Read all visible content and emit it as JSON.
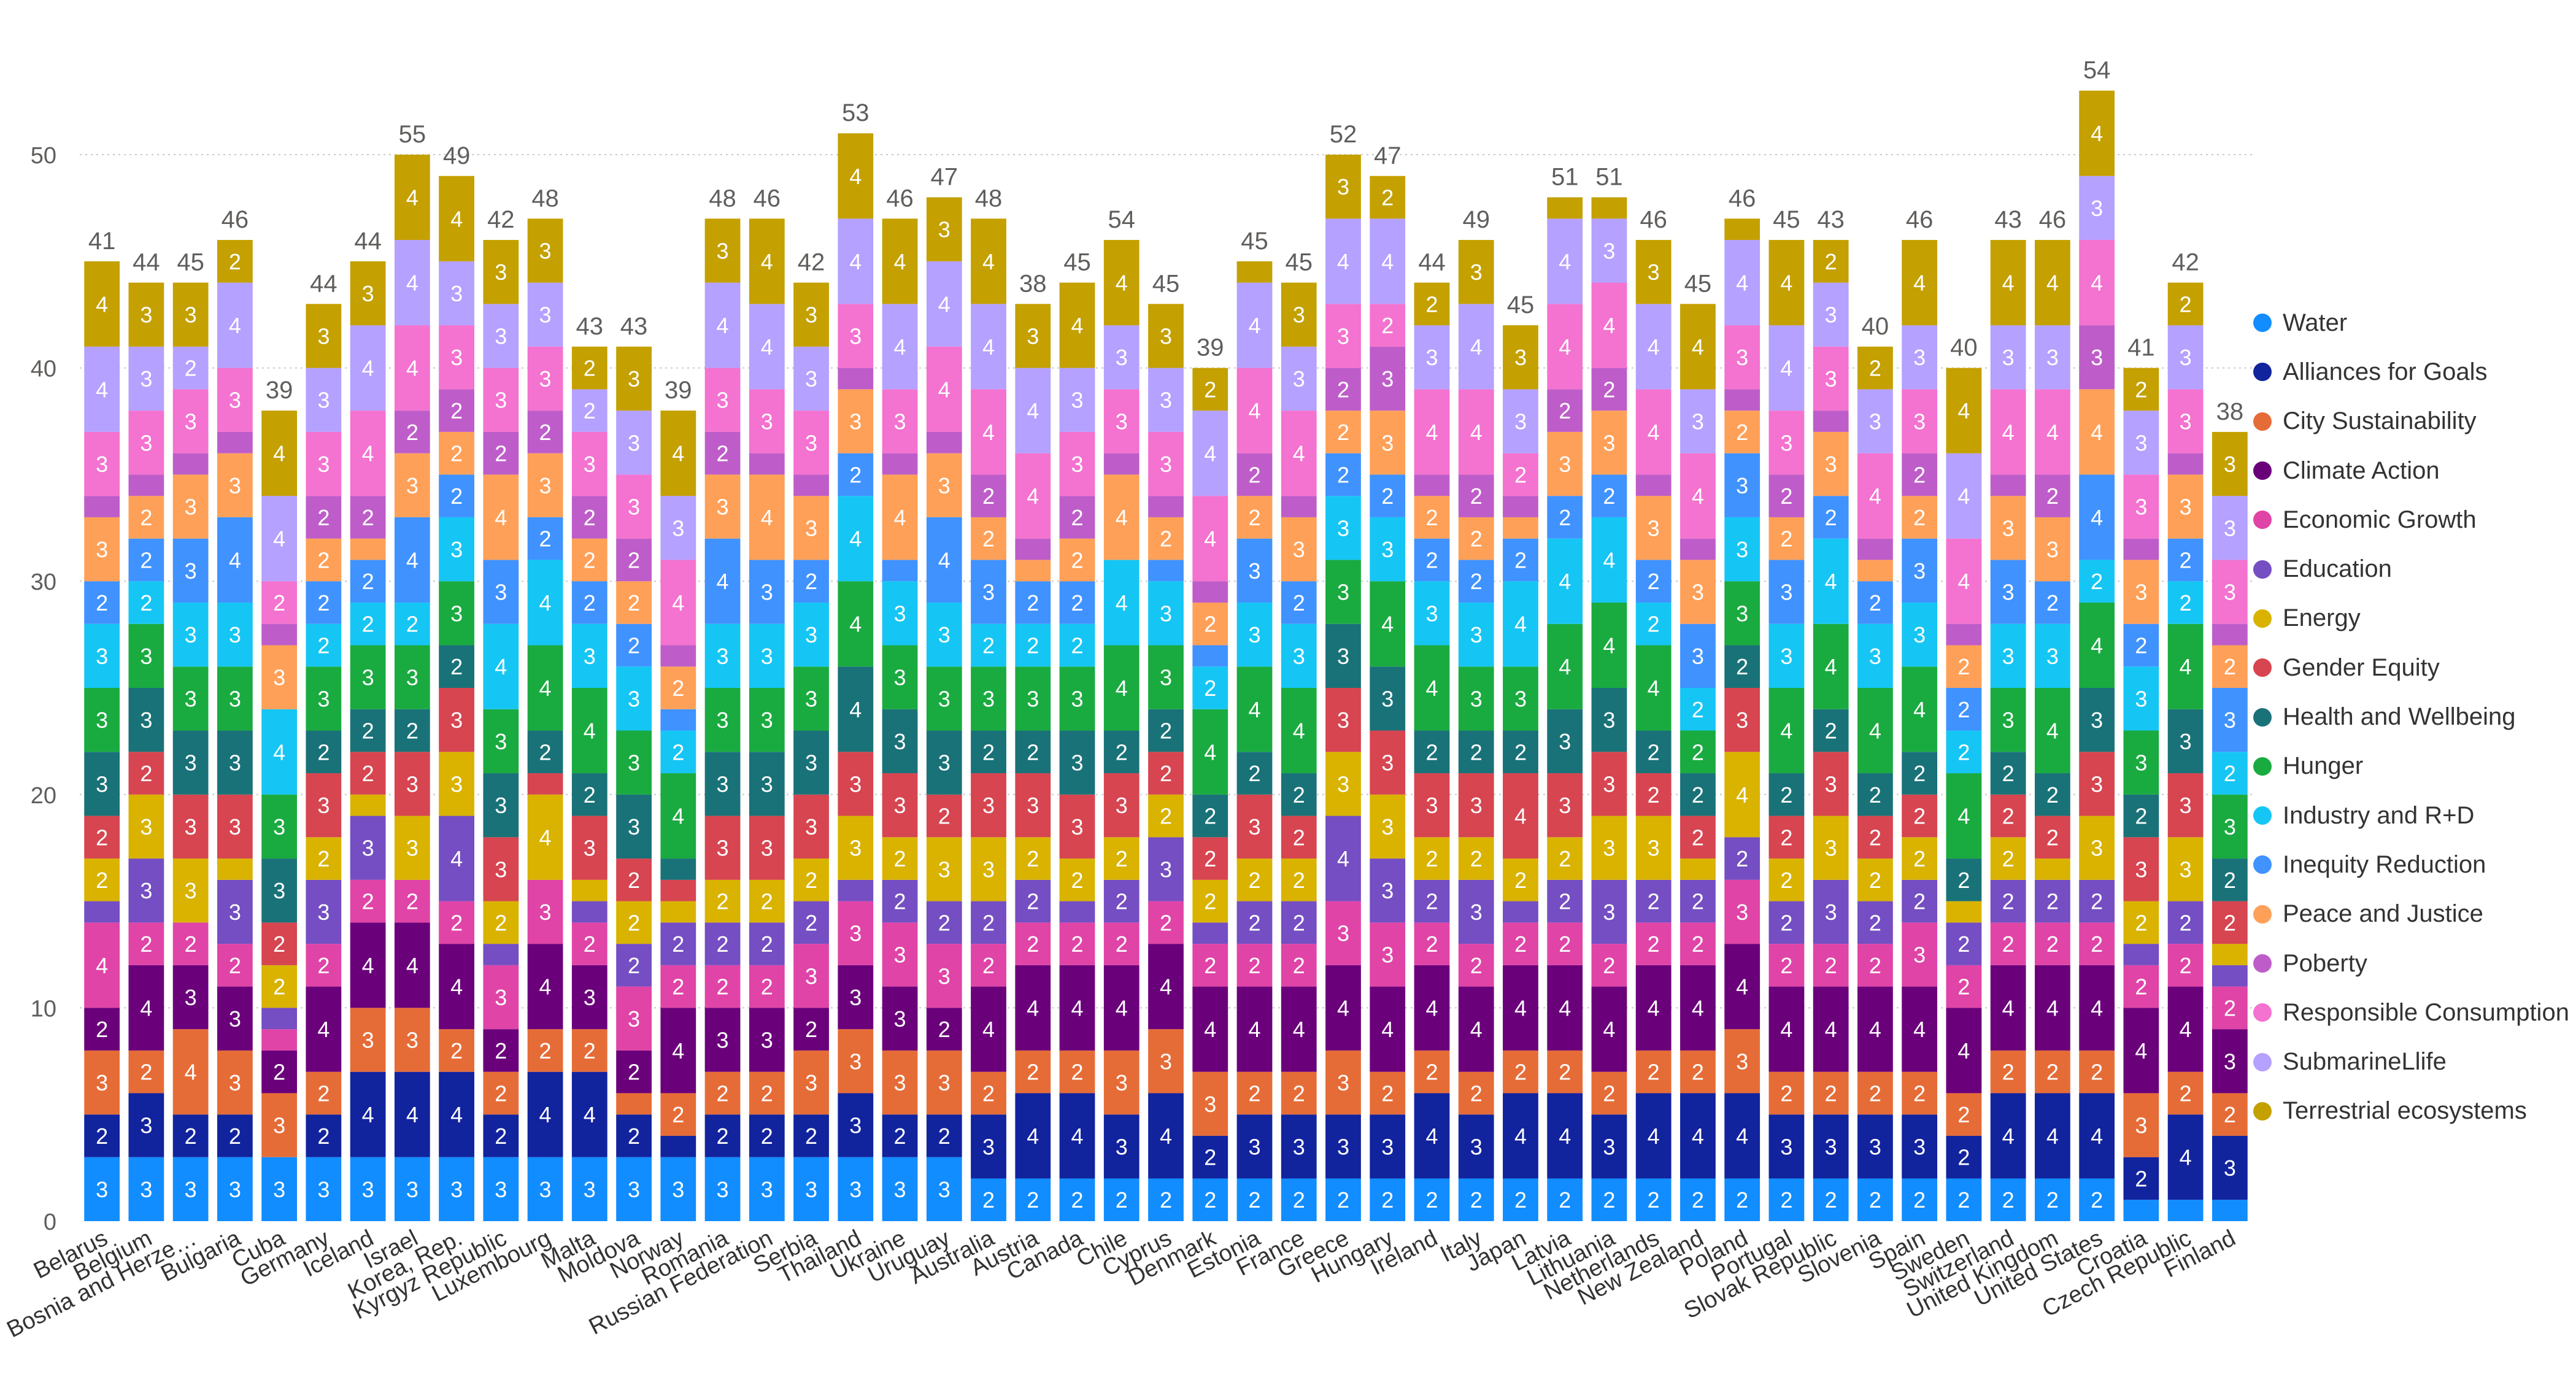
{
  "chart_data": {
    "type": "bar",
    "stacked": true,
    "grid": true,
    "legend_position": "right",
    "ylim": [
      0,
      55
    ],
    "yticks": [
      0,
      10,
      20,
      30,
      40,
      50
    ],
    "categories": [
      "Belarus",
      "Belgium",
      "Bosnia and Herze…",
      "Bulgaria",
      "Cuba",
      "Germany",
      "Iceland",
      "Israel",
      "Korea, Rep.",
      "Kyrgyz Republic",
      "Luxembourg",
      "Malta",
      "Moldova",
      "Norway",
      "Romania",
      "Russian Federation",
      "Serbia",
      "Thailand",
      "Ukraine",
      "Uruguay",
      "Australia",
      "Austria",
      "Canada",
      "Chile",
      "Cyprus",
      "Denmark",
      "Estonia",
      "France",
      "Greece",
      "Hungary",
      "Ireland",
      "Italy",
      "Japan",
      "Latvia",
      "Lithuania",
      "Netherlands",
      "New Zealand",
      "Poland",
      "Portugal",
      "Slovak Republic",
      "Slovenia",
      "Spain",
      "Sweden",
      "Switzerland",
      "United Kingdom",
      "United States",
      "Croatia",
      "Czech Republic",
      "Finland"
    ],
    "totals": [
      41,
      44,
      45,
      46,
      39,
      44,
      44,
      55,
      49,
      42,
      48,
      43,
      43,
      39,
      48,
      46,
      42,
      53,
      46,
      47,
      48,
      38,
      45,
      54,
      45,
      39,
      45,
      45,
      52,
      47,
      44,
      49,
      45,
      51,
      51,
      46,
      45,
      46,
      45,
      43,
      40,
      46,
      40,
      43,
      46,
      54,
      41,
      42,
      38
    ],
    "series": [
      {
        "name": "Water",
        "color": "#118DFF",
        "values": [
          3,
          3,
          3,
          3,
          3,
          3,
          3,
          3,
          3,
          3,
          3,
          3,
          3,
          3,
          3,
          3,
          3,
          3,
          3,
          3,
          2,
          2,
          2,
          2,
          2,
          2,
          2,
          2,
          2,
          2,
          2,
          2,
          2,
          2,
          2,
          2,
          2,
          2,
          2,
          2,
          2,
          2,
          2,
          2,
          2,
          2,
          1,
          1,
          1
        ]
      },
      {
        "name": "Alliances for Goals",
        "color": "#12239E",
        "values": [
          2,
          3,
          2,
          2,
          0,
          2,
          4,
          4,
          4,
          2,
          4,
          4,
          2,
          1,
          2,
          2,
          2,
          3,
          2,
          2,
          3,
          4,
          4,
          3,
          4,
          2,
          3,
          3,
          3,
          3,
          4,
          3,
          4,
          4,
          3,
          4,
          4,
          4,
          3,
          3,
          3,
          3,
          2,
          4,
          4,
          4,
          2,
          4,
          3
        ]
      },
      {
        "name": "City Sustainability",
        "color": "#E66C37",
        "values": [
          3,
          2,
          4,
          3,
          3,
          2,
          3,
          3,
          2,
          2,
          2,
          2,
          1,
          2,
          2,
          2,
          3,
          3,
          3,
          3,
          2,
          2,
          2,
          3,
          3,
          3,
          2,
          2,
          3,
          2,
          2,
          2,
          2,
          2,
          2,
          2,
          2,
          3,
          2,
          2,
          2,
          2,
          2,
          2,
          2,
          2,
          3,
          2,
          2
        ]
      },
      {
        "name": "Climate Action",
        "color": "#6B007B",
        "values": [
          2,
          4,
          3,
          3,
          2,
          4,
          4,
          4,
          4,
          2,
          4,
          3,
          2,
          4,
          3,
          3,
          2,
          3,
          3,
          2,
          4,
          4,
          4,
          4,
          4,
          4,
          4,
          4,
          4,
          4,
          4,
          4,
          4,
          4,
          4,
          4,
          4,
          4,
          4,
          4,
          4,
          4,
          4,
          4,
          4,
          4,
          4,
          4,
          3
        ]
      },
      {
        "name": "Economic Growth",
        "color": "#E044A7",
        "values": [
          4,
          2,
          2,
          2,
          1,
          2,
          2,
          2,
          2,
          3,
          3,
          2,
          3,
          2,
          2,
          2,
          3,
          3,
          3,
          3,
          2,
          2,
          2,
          2,
          2,
          2,
          2,
          2,
          3,
          3,
          2,
          2,
          2,
          2,
          2,
          2,
          2,
          3,
          2,
          2,
          2,
          3,
          2,
          2,
          2,
          2,
          2,
          2,
          2
        ]
      },
      {
        "name": "Education",
        "color": "#744EC2",
        "values": [
          1,
          3,
          0,
          3,
          1,
          3,
          3,
          0,
          4,
          1,
          0,
          1,
          2,
          2,
          2,
          2,
          2,
          1,
          2,
          2,
          2,
          2,
          1,
          2,
          3,
          1,
          2,
          2,
          4,
          3,
          2,
          3,
          1,
          2,
          3,
          2,
          2,
          2,
          2,
          3,
          2,
          2,
          2,
          2,
          2,
          2,
          1,
          2,
          1
        ]
      },
      {
        "name": "Energy",
        "color": "#D9B300",
        "values": [
          2,
          3,
          3,
          1,
          2,
          2,
          1,
          3,
          3,
          2,
          4,
          1,
          2,
          1,
          2,
          2,
          2,
          3,
          2,
          3,
          3,
          2,
          2,
          2,
          2,
          2,
          2,
          2,
          3,
          3,
          2,
          2,
          2,
          2,
          3,
          3,
          1,
          4,
          2,
          3,
          2,
          2,
          1,
          2,
          1,
          3,
          2,
          3,
          1
        ]
      },
      {
        "name": "Gender Equity",
        "color": "#D64550",
        "values": [
          2,
          2,
          3,
          3,
          2,
          3,
          2,
          3,
          3,
          3,
          1,
          3,
          2,
          1,
          3,
          3,
          3,
          3,
          3,
          2,
          3,
          3,
          3,
          3,
          2,
          2,
          3,
          2,
          3,
          3,
          3,
          3,
          4,
          3,
          3,
          2,
          2,
          3,
          2,
          3,
          2,
          2,
          0,
          2,
          2,
          3,
          3,
          3,
          2
        ]
      },
      {
        "name": "Health and Wellbeing",
        "color": "#197278",
        "values": [
          3,
          3,
          3,
          3,
          3,
          2,
          2,
          2,
          2,
          3,
          2,
          2,
          3,
          1,
          3,
          3,
          3,
          4,
          3,
          3,
          2,
          2,
          3,
          2,
          2,
          2,
          2,
          2,
          3,
          3,
          2,
          2,
          2,
          3,
          3,
          2,
          2,
          2,
          2,
          2,
          2,
          2,
          2,
          2,
          2,
          3,
          2,
          3,
          2
        ]
      },
      {
        "name": "Hunger",
        "color": "#1AAB40",
        "values": [
          3,
          3,
          3,
          3,
          3,
          3,
          3,
          3,
          3,
          3,
          4,
          4,
          3,
          4,
          3,
          3,
          3,
          4,
          3,
          3,
          3,
          3,
          3,
          4,
          3,
          4,
          4,
          4,
          3,
          4,
          4,
          3,
          3,
          4,
          4,
          4,
          2,
          3,
          4,
          4,
          4,
          4,
          4,
          3,
          4,
          4,
          3,
          4,
          3
        ]
      },
      {
        "name": "Industry and R+D",
        "color": "#15C6F4",
        "values": [
          3,
          2,
          3,
          3,
          4,
          2,
          2,
          2,
          3,
          4,
          4,
          3,
          3,
          2,
          3,
          3,
          3,
          4,
          3,
          3,
          2,
          2,
          2,
          4,
          3,
          2,
          3,
          3,
          3,
          3,
          3,
          3,
          4,
          4,
          4,
          2,
          2,
          3,
          3,
          4,
          3,
          3,
          2,
          3,
          3,
          2,
          3,
          2,
          2
        ]
      },
      {
        "name": "Inequity Reduction",
        "color": "#4092FF",
        "values": [
          2,
          2,
          3,
          4,
          0,
          2,
          2,
          4,
          2,
          3,
          2,
          2,
          2,
          1,
          4,
          3,
          2,
          2,
          1,
          4,
          3,
          2,
          2,
          0,
          1,
          1,
          3,
          2,
          2,
          2,
          2,
          2,
          2,
          2,
          2,
          2,
          3,
          3,
          3,
          2,
          2,
          3,
          2,
          3,
          2,
          4,
          2,
          2,
          3
        ]
      },
      {
        "name": "Peace and Justice",
        "color": "#FFA058",
        "values": [
          3,
          2,
          3,
          3,
          3,
          2,
          1,
          3,
          2,
          4,
          3,
          2,
          2,
          2,
          3,
          4,
          3,
          3,
          4,
          3,
          2,
          1,
          2,
          4,
          2,
          2,
          2,
          3,
          2,
          3,
          2,
          2,
          1,
          3,
          3,
          3,
          3,
          2,
          2,
          3,
          1,
          2,
          2,
          3,
          3,
          4,
          3,
          3,
          2
        ]
      },
      {
        "name": "Poberty",
        "color": "#BE5DC9",
        "values": [
          1,
          1,
          1,
          1,
          1,
          2,
          2,
          2,
          2,
          2,
          2,
          2,
          2,
          1,
          2,
          1,
          1,
          1,
          1,
          1,
          2,
          1,
          2,
          1,
          1,
          1,
          2,
          1,
          2,
          3,
          1,
          2,
          1,
          2,
          2,
          1,
          1,
          1,
          2,
          1,
          1,
          2,
          1,
          1,
          2,
          3,
          1,
          1,
          1
        ]
      },
      {
        "name": "Responsible Consumption",
        "color": "#F472D0",
        "values": [
          3,
          3,
          3,
          3,
          2,
          3,
          4,
          4,
          3,
          3,
          3,
          3,
          3,
          4,
          3,
          3,
          3,
          3,
          3,
          4,
          4,
          4,
          3,
          3,
          3,
          4,
          4,
          4,
          3,
          2,
          4,
          4,
          2,
          4,
          4,
          4,
          4,
          3,
          3,
          3,
          4,
          3,
          4,
          4,
          4,
          4,
          3,
          3,
          3
        ]
      },
      {
        "name": "SubmarineLlife",
        "color": "#B5A1FF",
        "values": [
          4,
          3,
          2,
          4,
          4,
          3,
          4,
          4,
          3,
          3,
          3,
          2,
          3,
          3,
          4,
          4,
          3,
          4,
          4,
          4,
          4,
          4,
          3,
          3,
          3,
          4,
          4,
          3,
          4,
          4,
          3,
          4,
          3,
          4,
          3,
          4,
          3,
          4,
          4,
          3,
          3,
          3,
          4,
          3,
          3,
          3,
          3,
          3,
          3
        ]
      },
      {
        "name": "Terrestrial ecosystems",
        "color": "#C4A000",
        "values": [
          4,
          3,
          3,
          2,
          4,
          3,
          3,
          4,
          4,
          3,
          3,
          2,
          3,
          4,
          3,
          4,
          3,
          4,
          4,
          3,
          4,
          3,
          4,
          4,
          3,
          2,
          1,
          3,
          3,
          2,
          2,
          3,
          3,
          1,
          1,
          3,
          4,
          1,
          4,
          2,
          2,
          4,
          4,
          4,
          4,
          4,
          2,
          2,
          3
        ]
      }
    ]
  }
}
